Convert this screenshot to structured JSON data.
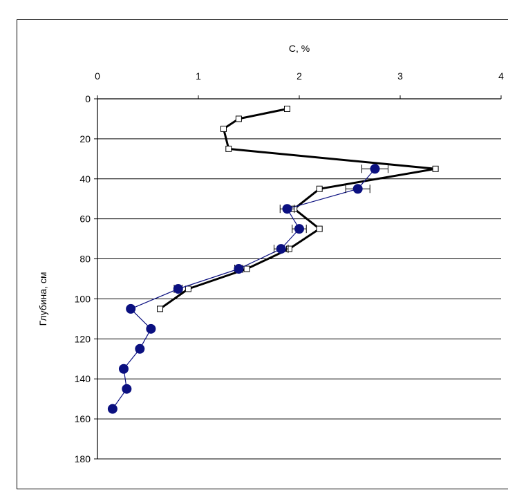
{
  "chart_data": {
    "type": "line",
    "xlabel": "C, %",
    "ylabel": "Глубина, см",
    "xlim": [
      0,
      4
    ],
    "ylim": [
      180,
      0
    ],
    "x_ticks": [
      "0",
      "1",
      "2",
      "3",
      "4"
    ],
    "y_ticks": [
      "0",
      "20",
      "40",
      "60",
      "80",
      "100",
      "120",
      "140",
      "160",
      "180"
    ],
    "x_axis_position": "top",
    "grid": "horizontal",
    "legend": "none",
    "series": [
      {
        "marker": "open-square",
        "line_weight": "thick",
        "color": "#000000",
        "points": [
          {
            "x": 1.88,
            "y": 5
          },
          {
            "x": 1.4,
            "y": 10
          },
          {
            "x": 1.25,
            "y": 15
          },
          {
            "x": 1.3,
            "y": 25
          },
          {
            "x": 3.35,
            "y": 35
          },
          {
            "x": 2.2,
            "y": 45
          },
          {
            "x": 1.95,
            "y": 55
          },
          {
            "x": 2.2,
            "y": 65
          },
          {
            "x": 1.9,
            "y": 75
          },
          {
            "x": 1.48,
            "y": 85
          },
          {
            "x": 0.9,
            "y": 95
          },
          {
            "x": 0.62,
            "y": 105
          }
        ]
      },
      {
        "marker": "filled-circle",
        "line_weight": "thin",
        "color": "#0b1080",
        "points": [
          {
            "x": 2.75,
            "y": 35,
            "err": 0.13
          },
          {
            "x": 2.58,
            "y": 45,
            "err": 0.12
          },
          {
            "x": 1.88,
            "y": 55,
            "err": 0.07
          },
          {
            "x": 2.0,
            "y": 65,
            "err": 0.07
          },
          {
            "x": 1.82,
            "y": 75,
            "err": 0.07
          },
          {
            "x": 1.4,
            "y": 85,
            "err": 0.04
          },
          {
            "x": 0.8,
            "y": 95,
            "err": 0.04
          },
          {
            "x": 0.33,
            "y": 105
          },
          {
            "x": 0.53,
            "y": 115
          },
          {
            "x": 0.42,
            "y": 125
          },
          {
            "x": 0.26,
            "y": 135
          },
          {
            "x": 0.29,
            "y": 145
          },
          {
            "x": 0.15,
            "y": 155
          }
        ]
      }
    ]
  }
}
